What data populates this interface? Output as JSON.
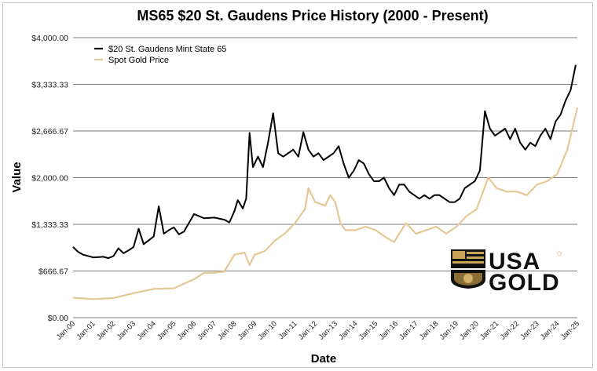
{
  "chart_data": {
    "type": "line",
    "title": "MS65 $20 St. Gaudens Price History  (2000 - Present)",
    "xlabel": "Date",
    "ylabel": "Value",
    "ylim": [
      0,
      4000
    ],
    "y_ticks": [
      {
        "value": 0,
        "label": "$0.00"
      },
      {
        "value": 666.67,
        "label": "$666.67"
      },
      {
        "value": 1333.33,
        "label": "$1,333.33"
      },
      {
        "value": 2000,
        "label": "$2,000.00"
      },
      {
        "value": 2666.67,
        "label": "$2,666.67"
      },
      {
        "value": 3333.33,
        "label": "$3,333.33"
      },
      {
        "value": 4000,
        "label": "$4,000.00"
      }
    ],
    "x_range": [
      "Jan-00",
      "Jan-25"
    ],
    "x_ticks": [
      "Jan-00",
      "Jan-01",
      "Jan-02",
      "Jan-03",
      "Jan-04",
      "Jan-05",
      "Jan-06",
      "Jan-07",
      "Jan-08",
      "Jan-09",
      "Jan-10",
      "Jan-11",
      "Jan-12",
      "Jan-13",
      "Jan-14",
      "Jan-15",
      "Jan-16",
      "Jan-17",
      "Jan-18",
      "Jan-19",
      "Jan-20",
      "Jan-21",
      "Jan-22",
      "Jan-23",
      "Jan-24",
      "Jan-25"
    ],
    "grid": "horizontal",
    "legend_position": "top-left",
    "series": [
      {
        "name": "$20 St. Gaudens Mint State 65",
        "color": "#000000",
        "x": [
          "Jan-00",
          "Apr-00",
          "Jul-00",
          "Jan-01",
          "Jul-01",
          "Oct-01",
          "Jan-02",
          "Apr-02",
          "Jul-02",
          "Oct-02",
          "Jan-03",
          "Apr-03",
          "Jul-03",
          "Jan-04",
          "Apr-04",
          "Jul-04",
          "Oct-04",
          "Jan-05",
          "Apr-05",
          "Jul-05",
          "Jan-06",
          "Jul-06",
          "Jan-07",
          "Jul-07",
          "Oct-07",
          "Jan-08",
          "Mar-08",
          "Jun-08",
          "Aug-08",
          "Oct-08",
          "Dec-08",
          "Mar-09",
          "Jun-09",
          "Sep-09",
          "Dec-09",
          "Mar-10",
          "Jun-10",
          "Sep-10",
          "Dec-10",
          "Mar-11",
          "Jun-11",
          "Sep-11",
          "Dec-11",
          "Mar-12",
          "Jun-12",
          "Sep-12",
          "Dec-12",
          "Mar-13",
          "Jun-13",
          "Sep-13",
          "Dec-13",
          "Mar-14",
          "Jun-14",
          "Sep-14",
          "Dec-14",
          "Mar-15",
          "Jun-15",
          "Sep-15",
          "Dec-15",
          "Mar-16",
          "Jun-16",
          "Sep-16",
          "Dec-16",
          "Mar-17",
          "Jun-17",
          "Sep-17",
          "Dec-17",
          "Mar-18",
          "Jun-18",
          "Sep-18",
          "Dec-18",
          "Mar-19",
          "Jun-19",
          "Sep-19",
          "Dec-19",
          "Mar-20",
          "Jun-20",
          "Sep-20",
          "Dec-20",
          "Mar-21",
          "Jun-21",
          "Sep-21",
          "Dec-21",
          "Mar-22",
          "Jun-22",
          "Sep-22",
          "Dec-22",
          "Mar-23",
          "Jun-23",
          "Sep-23",
          "Dec-23",
          "Mar-24",
          "Jun-24",
          "Sep-24",
          "Dec-24"
        ],
        "y": [
          1010,
          940,
          900,
          860,
          870,
          850,
          880,
          990,
          920,
          960,
          1010,
          1270,
          1050,
          1160,
          1590,
          1200,
          1250,
          1290,
          1190,
          1230,
          1480,
          1420,
          1430,
          1400,
          1360,
          1520,
          1680,
          1560,
          1700,
          2640,
          2150,
          2300,
          2150,
          2500,
          2920,
          2350,
          2300,
          2350,
          2400,
          2300,
          2650,
          2400,
          2300,
          2350,
          2250,
          2300,
          2350,
          2450,
          2200,
          2000,
          2100,
          2250,
          2200,
          2050,
          1950,
          1950,
          2000,
          1850,
          1750,
          1900,
          1900,
          1800,
          1750,
          1700,
          1750,
          1700,
          1750,
          1750,
          1700,
          1650,
          1650,
          1700,
          1850,
          1900,
          1950,
          2100,
          2950,
          2700,
          2600,
          2650,
          2700,
          2550,
          2700,
          2500,
          2400,
          2500,
          2450,
          2600,
          2700,
          2550,
          2800,
          2900,
          3100,
          3250,
          3610
        ]
      },
      {
        "name": "Spot Gold Price",
        "color": "#e5c896",
        "x": [
          "Jan-00",
          "Jan-01",
          "Jan-02",
          "Jan-03",
          "Jan-04",
          "Jan-05",
          "Jan-06",
          "Jul-06",
          "Jan-07",
          "Jul-07",
          "Jan-08",
          "Jul-08",
          "Oct-08",
          "Jan-09",
          "Jul-09",
          "Jan-10",
          "Jul-10",
          "Jan-11",
          "Jul-11",
          "Sep-11",
          "Jan-12",
          "Jul-12",
          "Oct-12",
          "Jan-13",
          "Apr-13",
          "Jul-13",
          "Jan-14",
          "Jul-14",
          "Jan-15",
          "Jul-15",
          "Dec-15",
          "Jul-16",
          "Jan-17",
          "Jul-17",
          "Jan-18",
          "Jul-18",
          "Jan-19",
          "Jul-19",
          "Jan-20",
          "Aug-20",
          "Jan-21",
          "Jul-21",
          "Jan-22",
          "Jul-22",
          "Jan-23",
          "Jul-23",
          "Jan-24",
          "Jul-24",
          "Jan-25"
        ],
        "y": [
          285,
          265,
          280,
          350,
          410,
          420,
          550,
          640,
          640,
          660,
          900,
          930,
          750,
          900,
          950,
          1100,
          1200,
          1350,
          1550,
          1850,
          1650,
          1600,
          1750,
          1650,
          1350,
          1250,
          1250,
          1300,
          1250,
          1150,
          1080,
          1350,
          1200,
          1250,
          1300,
          1200,
          1300,
          1450,
          1550,
          2000,
          1850,
          1800,
          1800,
          1750,
          1900,
          1950,
          2050,
          2400,
          3000
        ]
      }
    ]
  },
  "logo": {
    "line1": "USA",
    "line2": "GOLD",
    "mark": "☆"
  }
}
